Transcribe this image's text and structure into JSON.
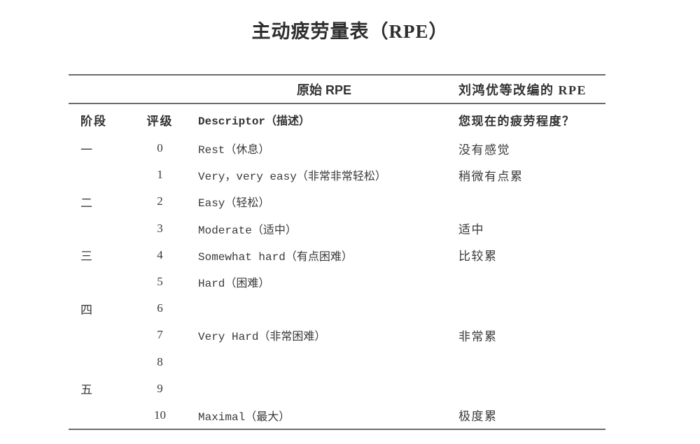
{
  "title": "主动疲劳量表（RPE）",
  "table": {
    "group_headers": {
      "original": "原始 RPE",
      "adapted": "刘鸿优等改编的 RPE"
    },
    "columns": {
      "stage": "阶段",
      "rating": "评级",
      "descriptor": "Descriptor（描述）",
      "fatigue": "您现在的疲劳程度？"
    },
    "rows": [
      {
        "stage": "一",
        "rating": "0",
        "descriptor": "Rest（休息）",
        "fatigue": "没有感觉"
      },
      {
        "stage": "",
        "rating": "1",
        "descriptor": "Very，very easy（非常非常轻松）",
        "fatigue": "稍微有点累"
      },
      {
        "stage": "二",
        "rating": "2",
        "descriptor": "Easy（轻松）",
        "fatigue": ""
      },
      {
        "stage": "",
        "rating": "3",
        "descriptor": "Moderate（适中）",
        "fatigue": "适中"
      },
      {
        "stage": "三",
        "rating": "4",
        "descriptor": "Somewhat hard（有点困难）",
        "fatigue": "比较累"
      },
      {
        "stage": "",
        "rating": "5",
        "descriptor": "Hard（困难）",
        "fatigue": ""
      },
      {
        "stage": "四",
        "rating": "6",
        "descriptor": "",
        "fatigue": ""
      },
      {
        "stage": "",
        "rating": "7",
        "descriptor": "Very Hard（非常困难）",
        "fatigue": "非常累"
      },
      {
        "stage": "",
        "rating": "8",
        "descriptor": "",
        "fatigue": ""
      },
      {
        "stage": "五",
        "rating": "9",
        "descriptor": "",
        "fatigue": ""
      },
      {
        "stage": "",
        "rating": "10",
        "descriptor": "Maximal（最大）",
        "fatigue": "极度累"
      }
    ]
  },
  "colors": {
    "background": "#ffffff",
    "text": "#3a3a3a",
    "heading_text": "#2f2f2f",
    "rule_line": "#6b6b6b"
  }
}
